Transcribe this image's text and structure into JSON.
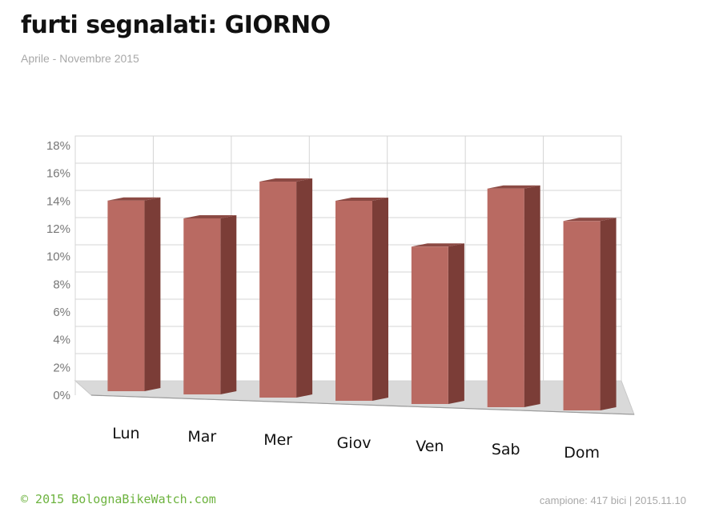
{
  "header": {
    "title": "furti segnalati:  GIORNO",
    "subtitle": "Aprile - Novembre 2015"
  },
  "footer": {
    "credit": "© 2015  BolognaBikeWatch.com",
    "sample": "campione: 417 bici  |  2015.11.10"
  },
  "colors": {
    "bar_front": "#b96a62",
    "bar_side": "#7b3d37",
    "bar_top": "#8c4a44",
    "floor": "#d9d9d9",
    "grid": "#d4d4d4",
    "credit": "#6db33f"
  },
  "chart_data": {
    "type": "bar",
    "style": "3d",
    "categories": [
      "Lun",
      "Mar",
      "Mer",
      "Giov",
      "Ven",
      "Sab",
      "Dom"
    ],
    "values": [
      14.3,
      13.2,
      16.2,
      15.0,
      11.8,
      16.4,
      14.2
    ],
    "y_unit": "%",
    "ylim": [
      0,
      18
    ],
    "y_ticks": [
      "0%",
      "2%",
      "4%",
      "6%",
      "8%",
      "10%",
      "12%",
      "14%",
      "16%",
      "18%"
    ],
    "grid": true,
    "legend": "none",
    "xlabel": "",
    "ylabel": ""
  }
}
